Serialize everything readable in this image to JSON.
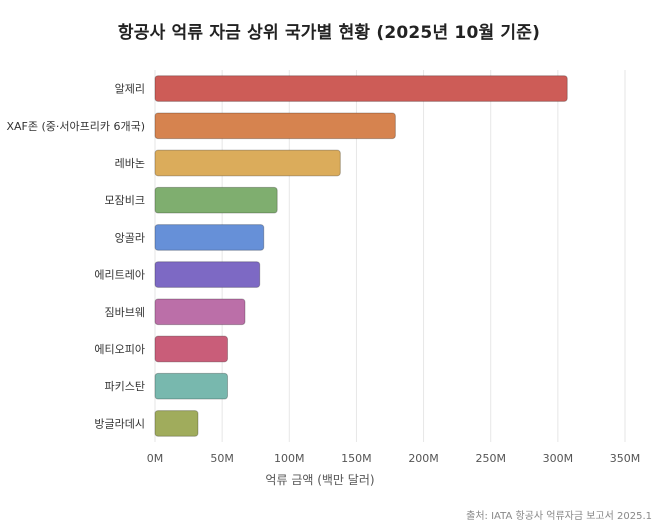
{
  "chart_data": {
    "type": "bar",
    "orientation": "horizontal",
    "title": "항공사 억류 자금 상위 국가별 현황 (2025년 10월 기준)",
    "xlabel": "억류 금액 (백만 달러)",
    "ylabel": "",
    "xlim": [
      0,
      350
    ],
    "x_ticks": [
      0,
      50,
      100,
      150,
      200,
      250,
      300,
      350
    ],
    "x_tick_labels": [
      "0M",
      "50M",
      "100M",
      "150M",
      "200M",
      "250M",
      "300M",
      "350M"
    ],
    "grid": true,
    "categories": [
      "알제리",
      "XAF존 (중·서아프리카 6개국)",
      "레바논",
      "모잠비크",
      "앙골라",
      "에리트레아",
      "짐바브웨",
      "에티오피아",
      "파키스탄",
      "방글라데시"
    ],
    "values": [
      307,
      179,
      138,
      91,
      81,
      78,
      67,
      54,
      54,
      32
    ],
    "colors": [
      "#cd5c57",
      "#d6834f",
      "#dbac5b",
      "#7fae6f",
      "#6690d8",
      "#7d69c4",
      "#bb6fa8",
      "#c95d79",
      "#78b8ae",
      "#a0ac5c"
    ],
    "source": "출처: IATA 항공사 억류자금 보고서 2025.1"
  }
}
